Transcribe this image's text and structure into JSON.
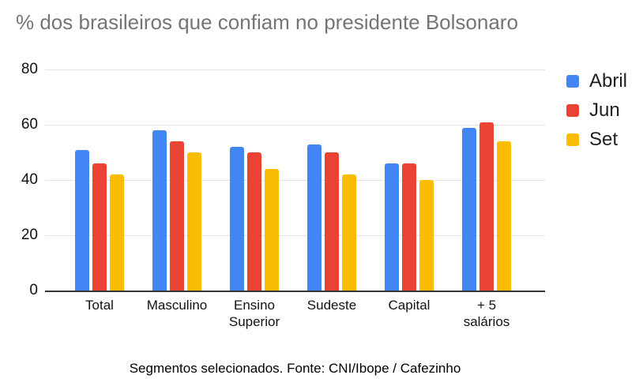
{
  "title": "% dos brasileiros que confiam no presidente Bolsonaro",
  "footer": "Segmentos selecionados. Fonte: CNI/Ibope / Cafezinho",
  "chart_data": {
    "type": "bar",
    "title": "% dos brasileiros que confiam no presidente Bolsonaro",
    "categories": [
      "Total",
      "Masculino",
      "Ensino Superior",
      "Sudeste",
      "Capital",
      "+ 5 salários"
    ],
    "categories_display": [
      "Total",
      "Masculino",
      "Ensino\nSuperior",
      "Sudeste",
      "Capital",
      "+ 5\nsalários"
    ],
    "series": [
      {
        "name": "Abril",
        "color": "#4285F4",
        "values": [
          51,
          58,
          52,
          53,
          46,
          59
        ]
      },
      {
        "name": "Jun",
        "color": "#EA4335",
        "values": [
          46,
          54,
          50,
          50,
          46,
          61
        ]
      },
      {
        "name": "Set",
        "color": "#FBBC04",
        "values": [
          42,
          50,
          44,
          42,
          40,
          54
        ]
      }
    ],
    "xlabel": "",
    "ylabel": "",
    "ylim": [
      0,
      80
    ],
    "yticks": [
      0,
      20,
      40,
      60,
      80
    ],
    "grid": true,
    "legend_position": "top-right",
    "source_note": "Segmentos selecionados. Fonte: CNI/Ibope / Cafezinho",
    "colors": {
      "title_text": "#757575",
      "axis_line": "#333333",
      "gridline": "#E3E3E3",
      "tick_text": "#111111",
      "legend_text": "#1F1F1F",
      "background": "#FFFFFF"
    }
  }
}
